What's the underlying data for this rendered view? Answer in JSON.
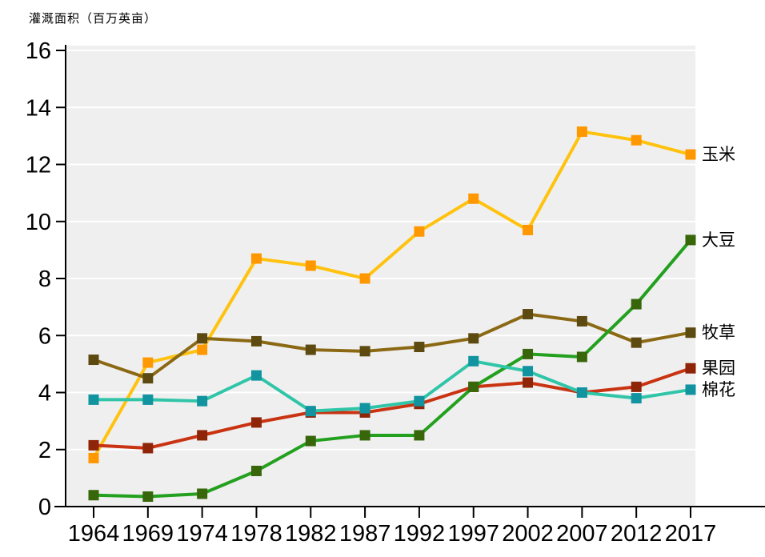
{
  "title": "灌溉面积（百万英亩）",
  "colors": {
    "plot_background": "#EFEFEF",
    "gridline": "#FFFFFF",
    "axis": "#000000",
    "text": "#000000"
  },
  "chart_data": {
    "type": "line",
    "title": "灌溉面积（百万英亩）",
    "ylabel": "灌溉面积（百万英亩）",
    "xlabel": "",
    "grid": true,
    "legend_position": "right-of-line-ends",
    "ylim": [
      0,
      16
    ],
    "yticks": [
      0,
      2,
      4,
      6,
      8,
      10,
      12,
      14,
      16
    ],
    "categories": [
      "1964",
      "1969",
      "1974",
      "1978",
      "1982",
      "1987",
      "1992",
      "1997",
      "2002",
      "2007",
      "2012",
      "2017"
    ],
    "series": [
      {
        "name": "玉米",
        "line_color": "#FFC20E",
        "marker_color": "#FF9800",
        "values": [
          1.7,
          5.05,
          5.5,
          8.7,
          8.45,
          8.0,
          9.65,
          10.8,
          9.7,
          13.15,
          12.85,
          12.35
        ]
      },
      {
        "name": "牧草",
        "line_color": "#8B6914",
        "marker_color": "#5D4A10",
        "values": [
          5.15,
          4.5,
          5.9,
          5.8,
          5.5,
          5.45,
          5.6,
          5.9,
          6.75,
          6.5,
          5.75,
          6.1
        ]
      },
      {
        "name": "果园",
        "line_color": "#C93312",
        "marker_color": "#8F2508",
        "values": [
          2.15,
          2.05,
          2.5,
          2.95,
          3.3,
          3.3,
          3.6,
          4.2,
          4.35,
          4.0,
          4.2,
          4.85
        ]
      },
      {
        "name": "大豆",
        "line_color": "#22A01E",
        "marker_color": "#38660A",
        "values": [
          0.4,
          0.35,
          0.45,
          1.25,
          2.3,
          2.5,
          2.5,
          4.2,
          5.35,
          5.25,
          7.1,
          9.35
        ]
      },
      {
        "name": "棉花",
        "line_color": "#30C5A8",
        "marker_color": "#1193A0",
        "values": [
          3.75,
          3.75,
          3.7,
          4.6,
          3.35,
          3.45,
          3.7,
          5.1,
          4.75,
          4.0,
          3.8,
          4.1
        ]
      }
    ]
  }
}
